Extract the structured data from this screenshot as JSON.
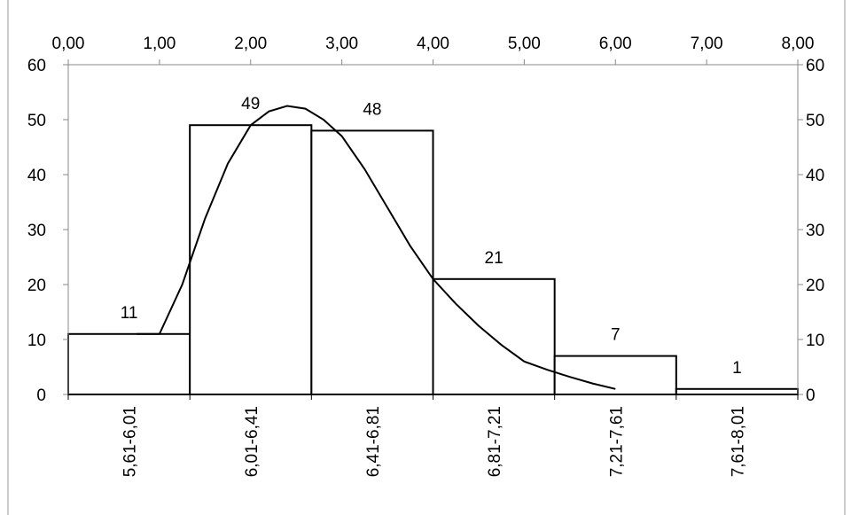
{
  "chart_data": {
    "type": "bar",
    "categories": [
      "5,61-6,01",
      "6,01-6,41",
      "6,41-6,81",
      "6,81-7,21",
      "7,21-7,61",
      "7,61-8,01"
    ],
    "values": [
      11,
      49,
      48,
      21,
      7,
      1
    ],
    "value_labels": [
      "11",
      "49",
      "48",
      "21",
      "7",
      "1"
    ],
    "bar_fill": "#ffffff",
    "line_color": "#000000",
    "ylim": [
      0,
      60
    ],
    "y_ticks": [
      "0",
      "10",
      "20",
      "30",
      "40",
      "50",
      "60"
    ],
    "y_ticks_right": [
      "0",
      "10",
      "20",
      "30",
      "40",
      "50",
      "60"
    ],
    "x2lim": [
      0,
      8
    ],
    "x2_ticks": [
      "0,00",
      "1,00",
      "2,00",
      "3,00",
      "4,00",
      "5,00",
      "6,00",
      "7,00",
      "8,00"
    ],
    "curve": {
      "x": [
        0.75,
        1.0,
        1.25,
        1.5,
        1.75,
        2.0,
        2.2,
        2.4,
        2.6,
        2.8,
        3.0,
        3.25,
        3.5,
        3.75,
        4.0,
        4.25,
        4.5,
        4.75,
        5.0,
        5.25,
        5.5,
        5.75,
        6.0
      ],
      "y": [
        11,
        11,
        20,
        32,
        42,
        49,
        51.5,
        52.5,
        52,
        50,
        47,
        41,
        34,
        27,
        21,
        16.5,
        12.5,
        9,
        6,
        4.5,
        3.2,
        2.0,
        1.0
      ]
    },
    "grid": false,
    "legend": "none"
  }
}
